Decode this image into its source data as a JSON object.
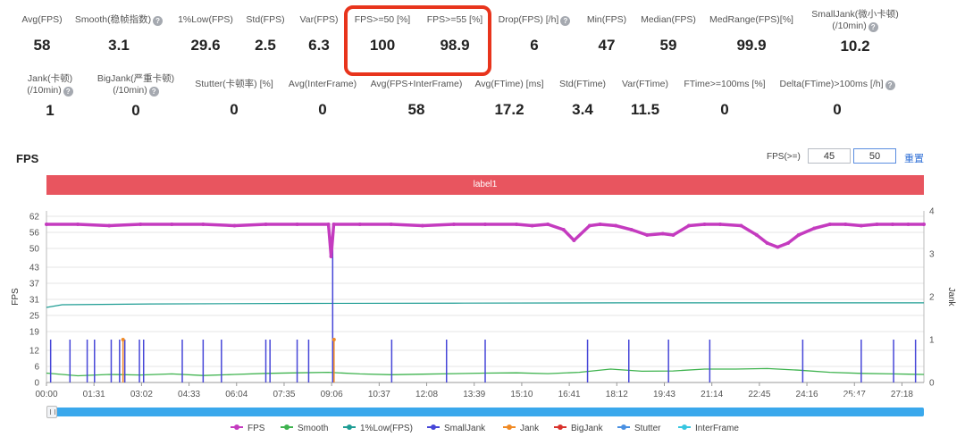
{
  "metrics_row1": [
    {
      "label": "Avg(FPS)",
      "value": "58",
      "help": false
    },
    {
      "label": "Smooth(稳帧指数)",
      "value": "3.1",
      "help": true
    },
    {
      "label": "1%Low(FPS)",
      "value": "29.6",
      "help": false
    },
    {
      "label": "Std(FPS)",
      "value": "2.5",
      "help": false
    },
    {
      "label": "Var(FPS)",
      "value": "6.3",
      "help": false
    },
    {
      "label": "FPS>=50 [%]",
      "value": "100",
      "help": false
    },
    {
      "label": "FPS>=55 [%]",
      "value": "98.9",
      "help": false
    },
    {
      "label": "Drop(FPS) [/h]",
      "value": "6",
      "help": true
    },
    {
      "label": "Min(FPS)",
      "value": "47",
      "help": false
    },
    {
      "label": "Median(FPS)",
      "value": "59",
      "help": false
    },
    {
      "label": "MedRange(FPS)[%]",
      "value": "99.9",
      "help": false
    },
    {
      "label": "SmallJank(微小卡顿)",
      "label2": "(/10min)",
      "value": "10.2",
      "help": true
    }
  ],
  "metrics_row2": [
    {
      "label": "Jank(卡顿)",
      "label2": "(/10min)",
      "value": "1",
      "help": true
    },
    {
      "label": "BigJank(严重卡顿)",
      "label2": "(/10min)",
      "value": "0",
      "help": true
    },
    {
      "label": "Stutter(卡顿率) [%]",
      "value": "0",
      "help": false
    },
    {
      "label": "Avg(InterFrame)",
      "value": "0",
      "help": false
    },
    {
      "label": "Avg(FPS+InterFrame)",
      "value": "58",
      "help": false
    },
    {
      "label": "Avg(FTime) [ms]",
      "value": "17.2",
      "help": false
    },
    {
      "label": "Std(FTime)",
      "value": "3.4",
      "help": false
    },
    {
      "label": "Var(FTime)",
      "value": "11.5",
      "help": false
    },
    {
      "label": "FTime>=100ms [%]",
      "value": "0",
      "help": false
    },
    {
      "label": "Delta(FTime)>100ms [/h]",
      "value": "0",
      "help": true
    }
  ],
  "help_glyph": "?",
  "chart_panel": {
    "title": "FPS",
    "threshold_label": "FPS(>=)",
    "threshold_values": [
      "45",
      "50"
    ],
    "reset_label": "重置",
    "label_bar": "label1"
  },
  "watermark": "@机智猫",
  "colors": {
    "fps": "#c43bbf",
    "smooth": "#3fb34f",
    "low": "#1f9d94",
    "smalljank": "#4646d8",
    "jank": "#f08a24",
    "bigjank": "#d9322c",
    "stutter": "#4a90e2",
    "interframe": "#37c6e0",
    "label_bar": "#e8555f",
    "highlight": "#e8341c",
    "scrollbar": "#3aa8ec"
  },
  "chart_data": {
    "type": "line",
    "title": "",
    "ylabel": "FPS",
    "y2label": "Jank",
    "ylim": [
      0,
      64
    ],
    "y2lim": [
      0,
      4
    ],
    "yticks": [
      0,
      6,
      12,
      19,
      25,
      31,
      37,
      43,
      50,
      56,
      62
    ],
    "y2ticks": [
      0,
      1,
      2,
      3,
      4
    ],
    "duration_seconds": 1680,
    "xtick_labels": [
      "00:00",
      "01:31",
      "03:02",
      "04:33",
      "06:04",
      "07:35",
      "09:06",
      "10:37",
      "12:08",
      "13:39",
      "15:10",
      "16:41",
      "18:12",
      "19:43",
      "21:14",
      "22:45",
      "24:16",
      "25:47",
      "27:18"
    ],
    "xtick_seconds": [
      0,
      91,
      182,
      273,
      364,
      455,
      546,
      637,
      728,
      819,
      910,
      1001,
      1092,
      1183,
      1274,
      1365,
      1456,
      1547,
      1638
    ],
    "grid": true,
    "legend": "bottom",
    "legend_items": [
      "FPS",
      "Smooth",
      "1%Low(FPS)",
      "SmallJank",
      "Jank",
      "BigJank",
      "Stutter",
      "InterFrame"
    ],
    "fps_series": {
      "name": "FPS",
      "x": [
        0,
        60,
        120,
        180,
        240,
        300,
        360,
        420,
        480,
        540,
        545,
        550,
        600,
        660,
        720,
        780,
        840,
        900,
        930,
        960,
        990,
        1010,
        1040,
        1060,
        1090,
        1120,
        1150,
        1180,
        1200,
        1230,
        1260,
        1290,
        1330,
        1360,
        1380,
        1400,
        1420,
        1440,
        1470,
        1500,
        1530,
        1560,
        1590,
        1620,
        1650,
        1680
      ],
      "y": [
        59,
        59,
        58.5,
        59,
        59,
        59,
        58.5,
        59,
        59,
        59,
        47,
        59,
        59,
        59,
        58.5,
        59,
        59,
        59,
        58.5,
        59,
        57,
        53,
        58.5,
        59,
        58.5,
        57,
        55,
        55.5,
        55,
        58.5,
        59,
        59,
        58.5,
        55,
        52,
        50.5,
        52,
        55,
        57.5,
        59,
        59,
        58.5,
        59,
        59,
        59,
        59
      ]
    },
    "smooth_series": {
      "name": "Smooth",
      "x": [
        0,
        60,
        120,
        180,
        240,
        300,
        360,
        420,
        480,
        540,
        600,
        660,
        720,
        780,
        840,
        900,
        960,
        1020,
        1080,
        1140,
        1200,
        1260,
        1320,
        1380,
        1440,
        1500,
        1560,
        1620,
        1680
      ],
      "y": [
        3.5,
        2.5,
        3,
        2.8,
        3.2,
        2.6,
        3,
        3.4,
        3.6,
        3.8,
        3.2,
        2.9,
        3.1,
        3.3,
        3.5,
        3.6,
        3.3,
        3.8,
        5,
        4.2,
        4.3,
        5,
        5,
        5.2,
        4.6,
        3.8,
        3.4,
        3.2,
        3
      ]
    },
    "low_series": {
      "name": "1%Low(FPS)",
      "x": [
        0,
        30,
        200,
        500,
        800,
        1100,
        1400,
        1680
      ],
      "y": [
        28,
        29,
        29.3,
        29.5,
        29.6,
        29.7,
        29.7,
        29.7
      ]
    },
    "smalljank_events": {
      "name": "SmallJank",
      "x": [
        8,
        45,
        78,
        92,
        124,
        140,
        150,
        178,
        186,
        260,
        300,
        335,
        420,
        428,
        480,
        502,
        548,
        661,
        766,
        840,
        1036,
        1115,
        1191,
        1270,
        1448,
        1560,
        1622,
        1664
      ],
      "y": [
        1,
        1,
        1,
        1,
        1,
        1,
        1,
        1,
        1,
        1,
        1,
        1,
        1,
        1,
        1,
        1,
        3.1,
        1,
        1,
        1,
        1,
        1,
        1,
        1,
        1,
        1,
        1,
        1
      ]
    },
    "jank_events": {
      "name": "Jank",
      "x": [
        144,
        548
      ],
      "y": [
        1,
        1
      ]
    },
    "bigjank_events": {
      "name": "BigJank",
      "x": [],
      "y": []
    }
  }
}
